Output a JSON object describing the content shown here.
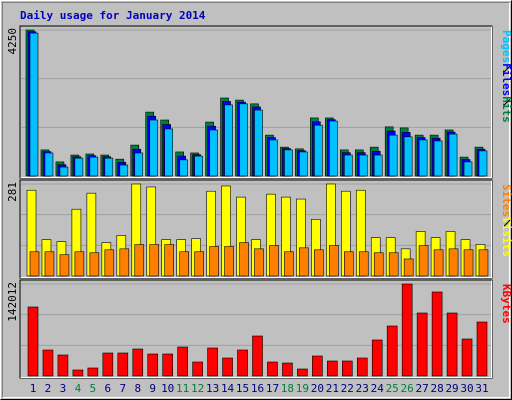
{
  "chart_data": [
    {
      "type": "bar",
      "title": "Daily usage for January 2014",
      "ylim": [
        0,
        4250
      ],
      "yticks": [
        4250
      ],
      "series": [
        {
          "name": "Hits",
          "color": "#008040",
          "values": [
            4250,
            760,
            410,
            610,
            640,
            610,
            490,
            900,
            1860,
            1630,
            700,
            670,
            1570,
            2270,
            2210,
            2100,
            1190,
            840,
            790,
            1690,
            1690,
            760,
            760,
            840,
            1430,
            1400,
            1190,
            1190,
            1340,
            550,
            840
          ]
        },
        {
          "name": "Files",
          "color": "#0000ff",
          "values": [
            4200,
            710,
            330,
            560,
            590,
            560,
            400,
            780,
            1740,
            1500,
            580,
            620,
            1450,
            2170,
            2150,
            2010,
            1120,
            800,
            740,
            1580,
            1640,
            680,
            680,
            720,
            1310,
            1270,
            1120,
            1100,
            1280,
            480,
            780
          ]
        },
        {
          "name": "Pages",
          "color": "#00c0ff",
          "values": [
            4160,
            670,
            260,
            520,
            550,
            520,
            320,
            670,
            1630,
            1370,
            470,
            580,
            1340,
            2070,
            2100,
            1920,
            1050,
            760,
            700,
            1480,
            1600,
            610,
            610,
            610,
            1190,
            1140,
            1050,
            1020,
            1220,
            410,
            730
          ]
        }
      ]
    },
    {
      "type": "bar",
      "ylim": [
        0,
        281
      ],
      "yticks": [
        281
      ],
      "series": [
        {
          "name": "Visits",
          "color": "#ffff00",
          "values": [
            262,
            111,
            105,
            204,
            253,
            102,
            124,
            281,
            272,
            111,
            111,
            114,
            259,
            275,
            241,
            111,
            250,
            241,
            235,
            173,
            281,
            259,
            262,
            117,
            117,
            83,
            136,
            117,
            136,
            111,
            96
          ]
        },
        {
          "name": "Sites",
          "color": "#ff8000",
          "values": [
            74,
            74,
            65,
            74,
            71,
            80,
            83,
            96,
            96,
            96,
            74,
            74,
            90,
            90,
            102,
            83,
            93,
            74,
            86,
            80,
            93,
            74,
            74,
            71,
            71,
            52,
            93,
            80,
            83,
            80,
            80
          ]
        }
      ]
    },
    {
      "type": "bar",
      "ylim": [
        0,
        142012
      ],
      "yticks": [
        142012
      ],
      "categories": [
        "1",
        "2",
        "3",
        "4",
        "5",
        "6",
        "7",
        "8",
        "9",
        "10",
        "11",
        "12",
        "13",
        "14",
        "15",
        "16",
        "17",
        "18",
        "19",
        "20",
        "21",
        "22",
        "23",
        "24",
        "25",
        "26",
        "27",
        "28",
        "29",
        "30",
        "31"
      ],
      "category_colors": [
        "#000080",
        "#000080",
        "#000080",
        "#008040",
        "#008040",
        "#000080",
        "#000080",
        "#000080",
        "#000080",
        "#000080",
        "#008040",
        "#008040",
        "#000080",
        "#000080",
        "#000080",
        "#000080",
        "#000080",
        "#008040",
        "#008040",
        "#000080",
        "#000080",
        "#000080",
        "#000080",
        "#000080",
        "#008040",
        "#008040",
        "#000080",
        "#000080",
        "#000080",
        "#000080",
        "#000080"
      ],
      "series": [
        {
          "name": "KBytes",
          "color": "#ff0000",
          "values": [
            106510,
            40130,
            32420,
            9260,
            12350,
            35500,
            35500,
            41680,
            33960,
            33960,
            44760,
            21610,
            43220,
            27790,
            40130,
            61740,
            21610,
            20070,
            10810,
            30870,
            23150,
            23150,
            27790,
            55570,
            77180,
            142012,
            97250,
            129660,
            97250,
            57110,
            83360
          ]
        }
      ]
    }
  ]
}
